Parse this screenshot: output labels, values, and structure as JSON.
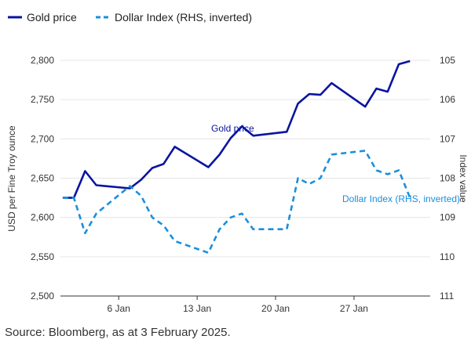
{
  "colors": {
    "gold": "#0a14a0",
    "dxy": "#1a8fdc",
    "grid": "#e6e6e6",
    "axis": "#333333"
  },
  "chart_data": {
    "type": "line",
    "x": [
      1,
      2,
      3,
      4,
      5,
      6,
      7,
      8,
      9,
      10,
      11,
      12,
      13,
      14,
      15,
      16,
      17,
      18,
      19,
      20,
      21,
      22,
      23,
      24,
      25,
      26,
      27,
      28,
      29,
      30,
      31,
      32
    ],
    "xlim": [
      0.8,
      33.8
    ],
    "xticks": [
      {
        "x": 6,
        "label": "6 Jan"
      },
      {
        "x": 13,
        "label": "13 Jan"
      },
      {
        "x": 20,
        "label": "20 Jan"
      },
      {
        "x": 27,
        "label": "27 Jan"
      }
    ],
    "series": [
      {
        "name": "Gold price",
        "axis": "left",
        "style": "solid",
        "values": [
          2625,
          2625,
          2659,
          2641,
          null,
          null,
          2637,
          2648,
          2663,
          2668,
          2690,
          null,
          null,
          2664,
          2680,
          2701,
          2716,
          2704,
          null,
          null,
          2709,
          2745,
          2757,
          2756,
          2771,
          null,
          null,
          2741,
          2764,
          2760,
          2795,
          2799
        ]
      },
      {
        "name": "Dollar Index (RHS, inverted)",
        "axis": "right",
        "style": "dashed",
        "values": [
          108.5,
          108.5,
          109.4,
          108.9,
          null,
          null,
          108.2,
          108.45,
          109.0,
          109.2,
          109.6,
          null,
          null,
          109.9,
          109.3,
          109.0,
          108.9,
          109.3,
          null,
          null,
          109.3,
          108.0,
          108.15,
          108.0,
          107.4,
          null,
          null,
          107.3,
          107.8,
          107.9,
          107.8,
          108.5
        ]
      }
    ],
    "ylim": [
      2500,
      2800
    ],
    "yticks": [
      "2,500",
      "2,550",
      "2,600",
      "2,650",
      "2,700",
      "2,750",
      "2,800"
    ],
    "ylabel": "USD per Fine Troy ounce",
    "y2lim": [
      105,
      111
    ],
    "y2_inverted": true,
    "y2ticks": [
      "105",
      "106",
      "107",
      "108",
      "109",
      "110",
      "111"
    ],
    "y2label": "Index value",
    "grid": true,
    "legend": {
      "position": "top-left",
      "items": [
        "Gold price",
        "Dollar Index (RHS, inverted)"
      ]
    },
    "annotations": [
      "Gold price",
      "Dollar Index (RHS, inverted)"
    ]
  },
  "source": "Source: Bloomberg, as at 3 February 2025."
}
